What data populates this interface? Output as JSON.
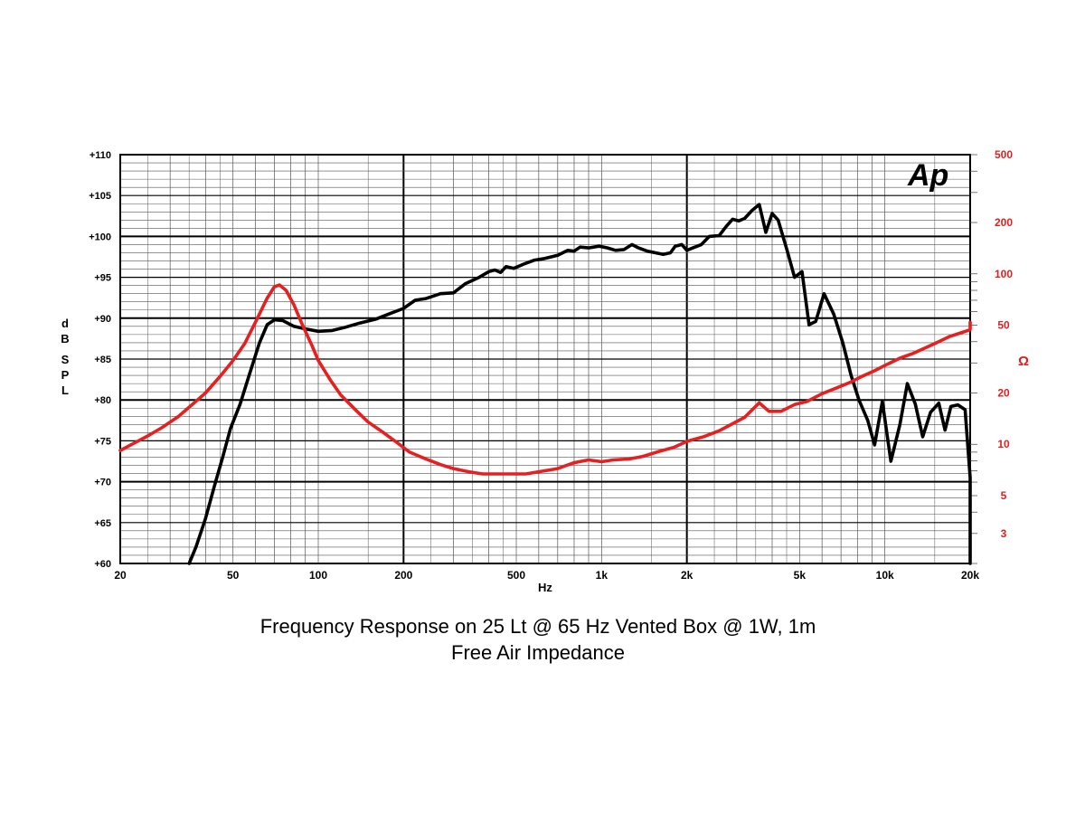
{
  "captions": {
    "line1": "Frequency Response on 25 Lt @ 65 Hz Vented Box @ 1W, 1m",
    "line2": "Free Air Impedance"
  },
  "logo": "Ap",
  "colors": {
    "spl": "#000000",
    "impedance": "#e62020",
    "grid_major": "#000000",
    "grid_minor": "#555555"
  },
  "chart_data": {
    "type": "line",
    "x_scale": "log",
    "xlabel": "Hz",
    "ylabel": "dB SPL",
    "y2label": "Ω",
    "xlim": [
      20,
      20000
    ],
    "ylim": [
      60,
      110
    ],
    "y2lim": [
      2,
      500
    ],
    "y2_scale": "log",
    "grid": true,
    "x_ticks": [
      {
        "v": 20,
        "label": "20"
      },
      {
        "v": 50,
        "label": "50"
      },
      {
        "v": 100,
        "label": "100"
      },
      {
        "v": 200,
        "label": "200"
      },
      {
        "v": 500,
        "label": "500"
      },
      {
        "v": 1000,
        "label": "1k"
      },
      {
        "v": 2000,
        "label": "2k"
      },
      {
        "v": 5000,
        "label": "5k"
      },
      {
        "v": 10000,
        "label": "10k"
      },
      {
        "v": 20000,
        "label": "20k"
      }
    ],
    "y_ticks": [
      {
        "v": 60,
        "label": "+60"
      },
      {
        "v": 65,
        "label": "+65"
      },
      {
        "v": 70,
        "label": "+70"
      },
      {
        "v": 75,
        "label": "+75"
      },
      {
        "v": 80,
        "label": "+80"
      },
      {
        "v": 85,
        "label": "+85"
      },
      {
        "v": 90,
        "label": "+90"
      },
      {
        "v": 95,
        "label": "+95"
      },
      {
        "v": 100,
        "label": "+100"
      },
      {
        "v": 105,
        "label": "+105"
      },
      {
        "v": 110,
        "label": "+110"
      }
    ],
    "y2_ticks": [
      {
        "v": 3,
        "label": "3"
      },
      {
        "v": 5,
        "label": "5"
      },
      {
        "v": 10,
        "label": "10"
      },
      {
        "v": 20,
        "label": "20"
      },
      {
        "v": 50,
        "label": "50"
      },
      {
        "v": 100,
        "label": "100"
      },
      {
        "v": 200,
        "label": "200"
      },
      {
        "v": 500,
        "label": "500"
      }
    ],
    "series": [
      {
        "axis": "left",
        "color": "#000000",
        "points": [
          [
            35,
            60
          ],
          [
            37,
            62
          ],
          [
            40,
            65.5
          ],
          [
            43,
            69.5
          ],
          [
            46,
            73
          ],
          [
            49,
            76.5
          ],
          [
            53,
            79.5
          ],
          [
            57,
            83
          ],
          [
            62,
            87
          ],
          [
            66,
            89.2
          ],
          [
            70,
            89.8
          ],
          [
            75,
            89.7
          ],
          [
            82,
            89
          ],
          [
            90,
            88.7
          ],
          [
            100,
            88.4
          ],
          [
            112,
            88.5
          ],
          [
            125,
            88.9
          ],
          [
            140,
            89.4
          ],
          [
            160,
            89.9
          ],
          [
            180,
            90.6
          ],
          [
            200,
            91.2
          ],
          [
            220,
            92.2
          ],
          [
            240,
            92.4
          ],
          [
            270,
            93
          ],
          [
            300,
            93.1
          ],
          [
            330,
            94.2
          ],
          [
            370,
            95
          ],
          [
            400,
            95.7
          ],
          [
            420,
            95.9
          ],
          [
            440,
            95.6
          ],
          [
            460,
            96.3
          ],
          [
            490,
            96.1
          ],
          [
            530,
            96.6
          ],
          [
            580,
            97.1
          ],
          [
            630,
            97.3
          ],
          [
            700,
            97.7
          ],
          [
            760,
            98.3
          ],
          [
            800,
            98.2
          ],
          [
            840,
            98.7
          ],
          [
            900,
            98.6
          ],
          [
            980,
            98.8
          ],
          [
            1050,
            98.6
          ],
          [
            1120,
            98.3
          ],
          [
            1200,
            98.4
          ],
          [
            1280,
            99
          ],
          [
            1350,
            98.6
          ],
          [
            1450,
            98.2
          ],
          [
            1550,
            98
          ],
          [
            1650,
            97.8
          ],
          [
            1750,
            98
          ],
          [
            1820,
            98.8
          ],
          [
            1920,
            99
          ],
          [
            2000,
            98.3
          ],
          [
            2100,
            98.6
          ],
          [
            2250,
            99
          ],
          [
            2400,
            100
          ],
          [
            2600,
            100.1
          ],
          [
            2750,
            101.2
          ],
          [
            2900,
            102.1
          ],
          [
            3050,
            101.9
          ],
          [
            3200,
            102.2
          ],
          [
            3400,
            103.2
          ],
          [
            3600,
            103.9
          ],
          [
            3800,
            100.5
          ],
          [
            4000,
            102.8
          ],
          [
            4200,
            102
          ],
          [
            4500,
            98.5
          ],
          [
            4800,
            95
          ],
          [
            5100,
            95.7
          ],
          [
            5400,
            89.2
          ],
          [
            5700,
            89.6
          ],
          [
            6100,
            93
          ],
          [
            6600,
            90.5
          ],
          [
            7100,
            87
          ],
          [
            7600,
            83
          ],
          [
            8100,
            80
          ],
          [
            8700,
            77.5
          ],
          [
            9200,
            74.5
          ],
          [
            9800,
            79.8
          ],
          [
            10500,
            72.5
          ],
          [
            11300,
            77
          ],
          [
            12000,
            82
          ],
          [
            12800,
            79.5
          ],
          [
            13600,
            75.5
          ],
          [
            14500,
            78.5
          ],
          [
            15500,
            79.6
          ],
          [
            16300,
            76.3
          ],
          [
            17100,
            79.2
          ],
          [
            18100,
            79.4
          ],
          [
            19200,
            78.8
          ],
          [
            20200,
            70.5
          ],
          [
            21300,
            60
          ],
          [
            22500,
            68
          ],
          [
            23600,
            65
          ]
        ]
      },
      {
        "axis": "right",
        "color": "#e62020",
        "points": [
          [
            20,
            9.2
          ],
          [
            22,
            10
          ],
          [
            25,
            11.2
          ],
          [
            28,
            12.5
          ],
          [
            32,
            14.5
          ],
          [
            35,
            16.5
          ],
          [
            40,
            20
          ],
          [
            45,
            25
          ],
          [
            50,
            31
          ],
          [
            55,
            39
          ],
          [
            60,
            52
          ],
          [
            66,
            72
          ],
          [
            70,
            84
          ],
          [
            73,
            86
          ],
          [
            77,
            80
          ],
          [
            82,
            66
          ],
          [
            88,
            50
          ],
          [
            95,
            38
          ],
          [
            100,
            31
          ],
          [
            110,
            24
          ],
          [
            120,
            19.5
          ],
          [
            135,
            16
          ],
          [
            150,
            13.5
          ],
          [
            170,
            11.7
          ],
          [
            190,
            10.2
          ],
          [
            210,
            9
          ],
          [
            240,
            8.2
          ],
          [
            270,
            7.6
          ],
          [
            300,
            7.2
          ],
          [
            340,
            6.9
          ],
          [
            380,
            6.7
          ],
          [
            420,
            6.7
          ],
          [
            480,
            6.7
          ],
          [
            540,
            6.7
          ],
          [
            600,
            6.9
          ],
          [
            700,
            7.2
          ],
          [
            800,
            7.8
          ],
          [
            900,
            8.1
          ],
          [
            1000,
            7.9
          ],
          [
            1100,
            8.1
          ],
          [
            1250,
            8.2
          ],
          [
            1400,
            8.5
          ],
          [
            1600,
            9.1
          ],
          [
            1800,
            9.6
          ],
          [
            2000,
            10.4
          ],
          [
            2300,
            11.1
          ],
          [
            2600,
            12
          ],
          [
            2900,
            13.2
          ],
          [
            3200,
            14.4
          ],
          [
            3600,
            17.5
          ],
          [
            3900,
            15.6
          ],
          [
            4300,
            15.6
          ],
          [
            4800,
            17.1
          ],
          [
            5300,
            17.8
          ],
          [
            6000,
            19.8
          ],
          [
            6800,
            21.5
          ],
          [
            7500,
            23
          ],
          [
            8300,
            25
          ],
          [
            9200,
            27
          ],
          [
            10200,
            29.5
          ],
          [
            11300,
            32
          ],
          [
            12500,
            34
          ],
          [
            14000,
            37
          ],
          [
            15500,
            40
          ],
          [
            17000,
            43
          ],
          [
            18500,
            45
          ],
          [
            20000,
            47
          ],
          [
            22000,
            49.5
          ],
          [
            23600,
            52
          ]
        ]
      }
    ]
  }
}
